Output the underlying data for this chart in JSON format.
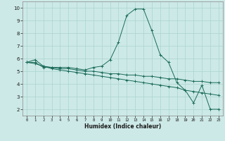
{
  "xlabel": "Humidex (Indice chaleur)",
  "ylabel": "",
  "background_color": "#cce9e7",
  "grid_color": "#aad4d0",
  "line_color": "#1a6b5a",
  "x_values": [
    0,
    1,
    2,
    3,
    4,
    5,
    6,
    7,
    8,
    9,
    10,
    11,
    12,
    13,
    14,
    15,
    16,
    17,
    18,
    19,
    20,
    21,
    22,
    23
  ],
  "line1": [
    5.7,
    5.9,
    5.4,
    5.3,
    5.3,
    5.3,
    5.2,
    5.1,
    5.3,
    5.4,
    5.9,
    7.3,
    9.4,
    9.9,
    9.9,
    8.2,
    6.3,
    5.7,
    4.1,
    3.5,
    2.5,
    3.9,
    2.0,
    2.0
  ],
  "line2": [
    5.7,
    5.7,
    5.3,
    5.3,
    5.2,
    5.2,
    5.1,
    5.0,
    5.0,
    4.9,
    4.8,
    4.8,
    4.7,
    4.7,
    4.6,
    4.6,
    4.5,
    4.4,
    4.4,
    4.3,
    4.2,
    4.2,
    4.1,
    4.1
  ],
  "line3": [
    5.7,
    5.6,
    5.4,
    5.2,
    5.1,
    5.0,
    4.9,
    4.8,
    4.7,
    4.6,
    4.5,
    4.4,
    4.3,
    4.2,
    4.1,
    4.0,
    3.9,
    3.8,
    3.7,
    3.5,
    3.4,
    3.3,
    3.2,
    3.1
  ],
  "xlim": [
    -0.5,
    23.5
  ],
  "ylim": [
    1.5,
    10.5
  ],
  "yticks": [
    2,
    3,
    4,
    5,
    6,
    7,
    8,
    9,
    10
  ],
  "xticks": [
    0,
    1,
    2,
    3,
    4,
    5,
    6,
    7,
    8,
    9,
    10,
    11,
    12,
    13,
    14,
    15,
    16,
    17,
    18,
    19,
    20,
    21,
    22,
    23
  ],
  "xlabel_fontsize": 5.5,
  "tick_fontsize_x": 4.0,
  "tick_fontsize_y": 5.0
}
